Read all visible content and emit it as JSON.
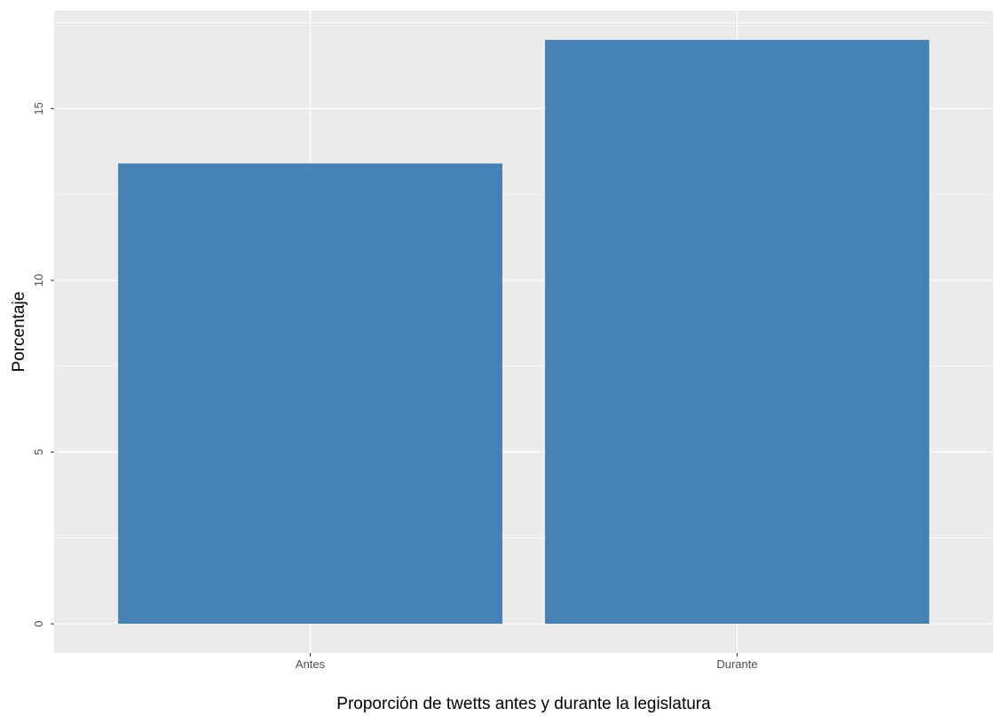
{
  "chart_data": {
    "type": "bar",
    "categories": [
      "Antes",
      "Durante"
    ],
    "values": [
      13.4,
      17.0
    ],
    "title": "",
    "xlabel": "Proporción de twetts antes y durante la legislatura",
    "ylabel": "Porcentaje",
    "ylim": [
      -0.85,
      17.85
    ],
    "yticks": [
      0,
      5,
      10,
      15
    ],
    "ytick_labels": [
      "0",
      "5",
      "10",
      "15"
    ],
    "grid": true,
    "legend": "none",
    "colors": {
      "bar": "#4682b4",
      "panel_background": "#ebebeb",
      "grid": "#ffffff",
      "tick_text": "#4d4d4d"
    }
  }
}
